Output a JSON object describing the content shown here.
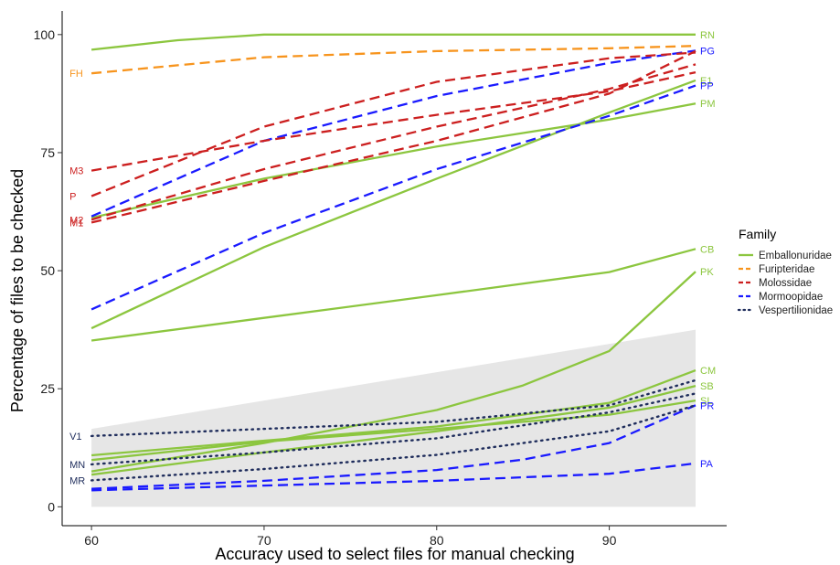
{
  "chart_data": {
    "type": "line",
    "xlabel": "Accuracy used to select files for manual checking",
    "ylabel": "Percentage of files to be checked",
    "xlim": [
      58.3,
      96.8
    ],
    "ylim": [
      -4,
      105
    ],
    "x_ticks": [
      60,
      70,
      80,
      90
    ],
    "y_ticks": [
      0,
      25,
      50,
      75,
      100
    ],
    "grid": false,
    "legend": {
      "title": "Family",
      "position": "right",
      "entries": [
        {
          "family": "Emballonuridae",
          "color": "#8cc63f",
          "dash": "solid"
        },
        {
          "family": "Furipteridae",
          "color": "#f7941d",
          "dash": "dashed"
        },
        {
          "family": "Molossidae",
          "color": "#cc1f1f",
          "dash": "dashed"
        },
        {
          "family": "Mormoopidae",
          "color": "#1a1aff",
          "dash": "dashed"
        },
        {
          "family": "Vespertilionidae",
          "color": "#1f2d5c",
          "dash": "dotted"
        }
      ]
    },
    "ribbon": {
      "color": "#e6e6e6",
      "x": [
        60,
        95
      ],
      "lower": [
        0,
        0
      ],
      "upper": [
        16.5,
        37.5
      ]
    },
    "series": [
      {
        "name": "RN",
        "family": "Emballonuridae",
        "label_side": "right",
        "x": [
          60,
          65,
          70,
          75,
          80,
          85,
          90,
          95
        ],
        "y": [
          96.8,
          98.8,
          100,
          100,
          100,
          100,
          100,
          100
        ]
      },
      {
        "name": "E1",
        "family": "Emballonuridae",
        "label_side": "right",
        "x": [
          60,
          70,
          80,
          90,
          95
        ],
        "y": [
          37.8,
          55,
          69.5,
          83.5,
          90.3
        ]
      },
      {
        "name": "PM",
        "family": "Emballonuridae",
        "label_side": "right",
        "x": [
          60,
          70,
          80,
          90,
          95
        ],
        "y": [
          61.2,
          69.5,
          76.3,
          82,
          85.4
        ]
      },
      {
        "name": "CB",
        "family": "Emballonuridae",
        "label_side": "right",
        "x": [
          60,
          70,
          80,
          90,
          95
        ],
        "y": [
          35.2,
          40,
          44.8,
          49.7,
          54.6
        ]
      },
      {
        "name": "PK",
        "family": "Emballonuridae",
        "label_side": "right",
        "x": [
          60,
          70,
          80,
          85,
          90,
          95
        ],
        "y": [
          7.5,
          13.5,
          20.5,
          25.7,
          33,
          49.8
        ]
      },
      {
        "name": "CM",
        "family": "Emballonuridae",
        "label_side": "right",
        "x": [
          60,
          70,
          80,
          90,
          95
        ],
        "y": [
          10.9,
          14,
          17,
          22,
          28.9
        ]
      },
      {
        "name": "SB",
        "family": "Emballonuridae",
        "label_side": "right",
        "x": [
          60,
          70,
          80,
          90,
          95
        ],
        "y": [
          6.8,
          11.5,
          16,
          21,
          25.6
        ]
      },
      {
        "name": "SL",
        "family": "Emballonuridae",
        "label_side": "right",
        "x": [
          60,
          70,
          80,
          90,
          95
        ],
        "y": [
          9.9,
          13.8,
          16.5,
          19.5,
          22.5
        ]
      },
      {
        "name": "FH",
        "family": "Furipteridae",
        "label_side": "left",
        "x": [
          60,
          70,
          80,
          90,
          95
        ],
        "y": [
          91.8,
          95.2,
          96.5,
          97.1,
          97.6
        ]
      },
      {
        "name": "PG",
        "family": "Mormoopidae",
        "label_side": "right",
        "x": [
          60,
          70,
          80,
          90,
          95
        ],
        "y": [
          61.5,
          77.5,
          87,
          94,
          96.6
        ]
      },
      {
        "name": "PP",
        "family": "Mormoopidae",
        "label_side": "right",
        "x": [
          60,
          70,
          80,
          90,
          95
        ],
        "y": [
          41.8,
          58,
          71.5,
          82.8,
          89.2
        ]
      },
      {
        "name": "PR",
        "family": "Mormoopidae",
        "label_side": "right",
        "x": [
          60,
          70,
          80,
          85,
          90,
          95
        ],
        "y": [
          3.8,
          5.5,
          7.8,
          10,
          13.5,
          21.5
        ]
      },
      {
        "name": "PA",
        "family": "Mormoopidae",
        "label_side": "right",
        "x": [
          60,
          70,
          80,
          90,
          95
        ],
        "y": [
          3.5,
          4.5,
          5.5,
          7,
          9.2
        ]
      },
      {
        "name": "M3",
        "family": "Molossidae",
        "label_side": "left",
        "x": [
          60,
          70,
          80,
          90,
          95
        ],
        "y": [
          71.2,
          77.5,
          83,
          88,
          92
        ]
      },
      {
        "name": "P",
        "family": "Molossidae",
        "label_side": "left",
        "x": [
          60,
          70,
          80,
          90,
          95
        ],
        "y": [
          65.8,
          80.5,
          90,
          95,
          96.2
        ]
      },
      {
        "name": "M2",
        "family": "Molossidae",
        "label_side": "left",
        "x": [
          60,
          70,
          80,
          90,
          95
        ],
        "y": [
          60.8,
          71.5,
          80.5,
          88.5,
          93.7
        ]
      },
      {
        "name": "M1",
        "family": "Molossidae",
        "label_side": "left",
        "x": [
          60,
          70,
          80,
          90,
          95
        ],
        "y": [
          60.2,
          69,
          77.5,
          87.5,
          96.5
        ]
      },
      {
        "name": "V1",
        "family": "Vespertilionidae",
        "label_side": "left",
        "x": [
          60,
          70,
          80,
          90,
          95
        ],
        "y": [
          15,
          16.5,
          18,
          21.5,
          26.8
        ]
      },
      {
        "name": "MN",
        "family": "Vespertilionidae",
        "label_side": "left",
        "x": [
          60,
          70,
          80,
          90,
          95
        ],
        "y": [
          9,
          11.5,
          14.5,
          20,
          24
        ]
      },
      {
        "name": "MR",
        "family": "Vespertilionidae",
        "label_side": "left",
        "x": [
          60,
          70,
          80,
          90,
          95
        ],
        "y": [
          5.6,
          8,
          11,
          16,
          21.5
        ]
      }
    ]
  }
}
